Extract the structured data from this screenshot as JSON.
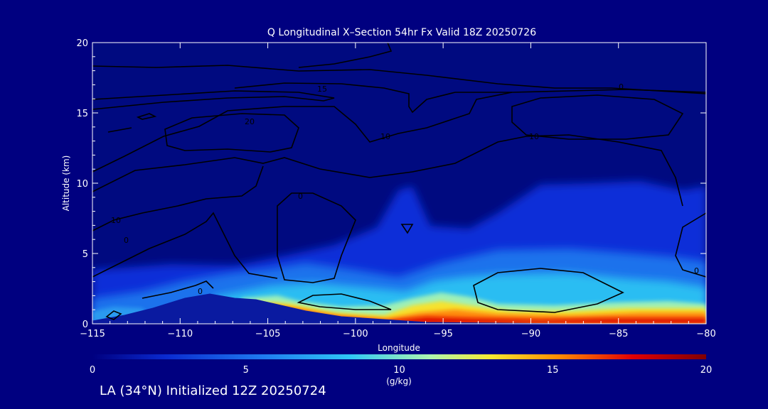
{
  "chart_data": {
    "type": "heatmap",
    "title": "Q Longitudinal X–Section 54hr  Fx Valid 18Z 20250726",
    "xlabel": "Longitude",
    "ylabel": "Altitude (km)",
    "xlim": [
      -115,
      -80
    ],
    "ylim": [
      0,
      20
    ],
    "x_ticks": [
      -115,
      -110,
      -105,
      -100,
      -95,
      -90,
      -85,
      -80
    ],
    "x_tick_labels": [
      "−115",
      "−110",
      "−105",
      "−100",
      "−95",
      "−90",
      "−85",
      "−80"
    ],
    "y_ticks": [
      0,
      5,
      10,
      15,
      20
    ],
    "y_tick_labels": [
      "0",
      "5",
      "10",
      "15",
      "20"
    ],
    "colorbar": {
      "label": "(g/kg)",
      "range": [
        0,
        20
      ],
      "ticks": [
        0,
        5,
        10,
        15,
        20
      ],
      "tick_labels": [
        "0",
        "5",
        "10",
        "15",
        "20"
      ],
      "colors": [
        "#000080",
        "#0a2ad0",
        "#1f7cf0",
        "#2fc8f5",
        "#aef5b0",
        "#f8e830",
        "#ff8c00",
        "#e00000",
        "#800000"
      ]
    },
    "terrain": [
      {
        "lon": -115,
        "alt": 0.3
      },
      {
        "lon": -113,
        "alt": 0.7
      },
      {
        "lon": -111,
        "alt": 1.4
      },
      {
        "lon": -109,
        "alt": 2.1
      },
      {
        "lon": -107,
        "alt": 1.7
      },
      {
        "lon": -105,
        "alt": 1.4
      },
      {
        "lon": -103,
        "alt": 1.0
      },
      {
        "lon": -101,
        "alt": 0.6
      },
      {
        "lon": -99,
        "alt": 0.3
      },
      {
        "lon": -96,
        "alt": 0.15
      },
      {
        "lon": -80,
        "alt": 0.05
      }
    ],
    "moisture_samples": [
      {
        "lon": -114,
        "alt": 0.5,
        "q": 6
      },
      {
        "lon": -112,
        "alt": 2.5,
        "q": 4
      },
      {
        "lon": -105,
        "alt": 1.5,
        "q": 12
      },
      {
        "lon": -100,
        "alt": 1.0,
        "q": 15
      },
      {
        "lon": -95,
        "alt": 0.7,
        "q": 17
      },
      {
        "lon": -95,
        "alt": 2.0,
        "q": 10
      },
      {
        "lon": -90,
        "alt": 0.6,
        "q": 17
      },
      {
        "lon": -90,
        "alt": 3.0,
        "q": 5
      },
      {
        "lon": -85,
        "alt": 1.0,
        "q": 15
      },
      {
        "lon": -82,
        "alt": 3.0,
        "q": 7
      },
      {
        "lon": -97,
        "alt": 5.5,
        "q": 2
      },
      {
        "lon": -88,
        "alt": 6.5,
        "q": 3
      }
    ],
    "contour_labels": [
      "15",
      "20",
      "10",
      "10",
      "10",
      "0",
      "0",
      "0",
      "0",
      "0"
    ]
  },
  "footer": {
    "text": "LA (34°N) Initialized 12Z 20250724"
  }
}
